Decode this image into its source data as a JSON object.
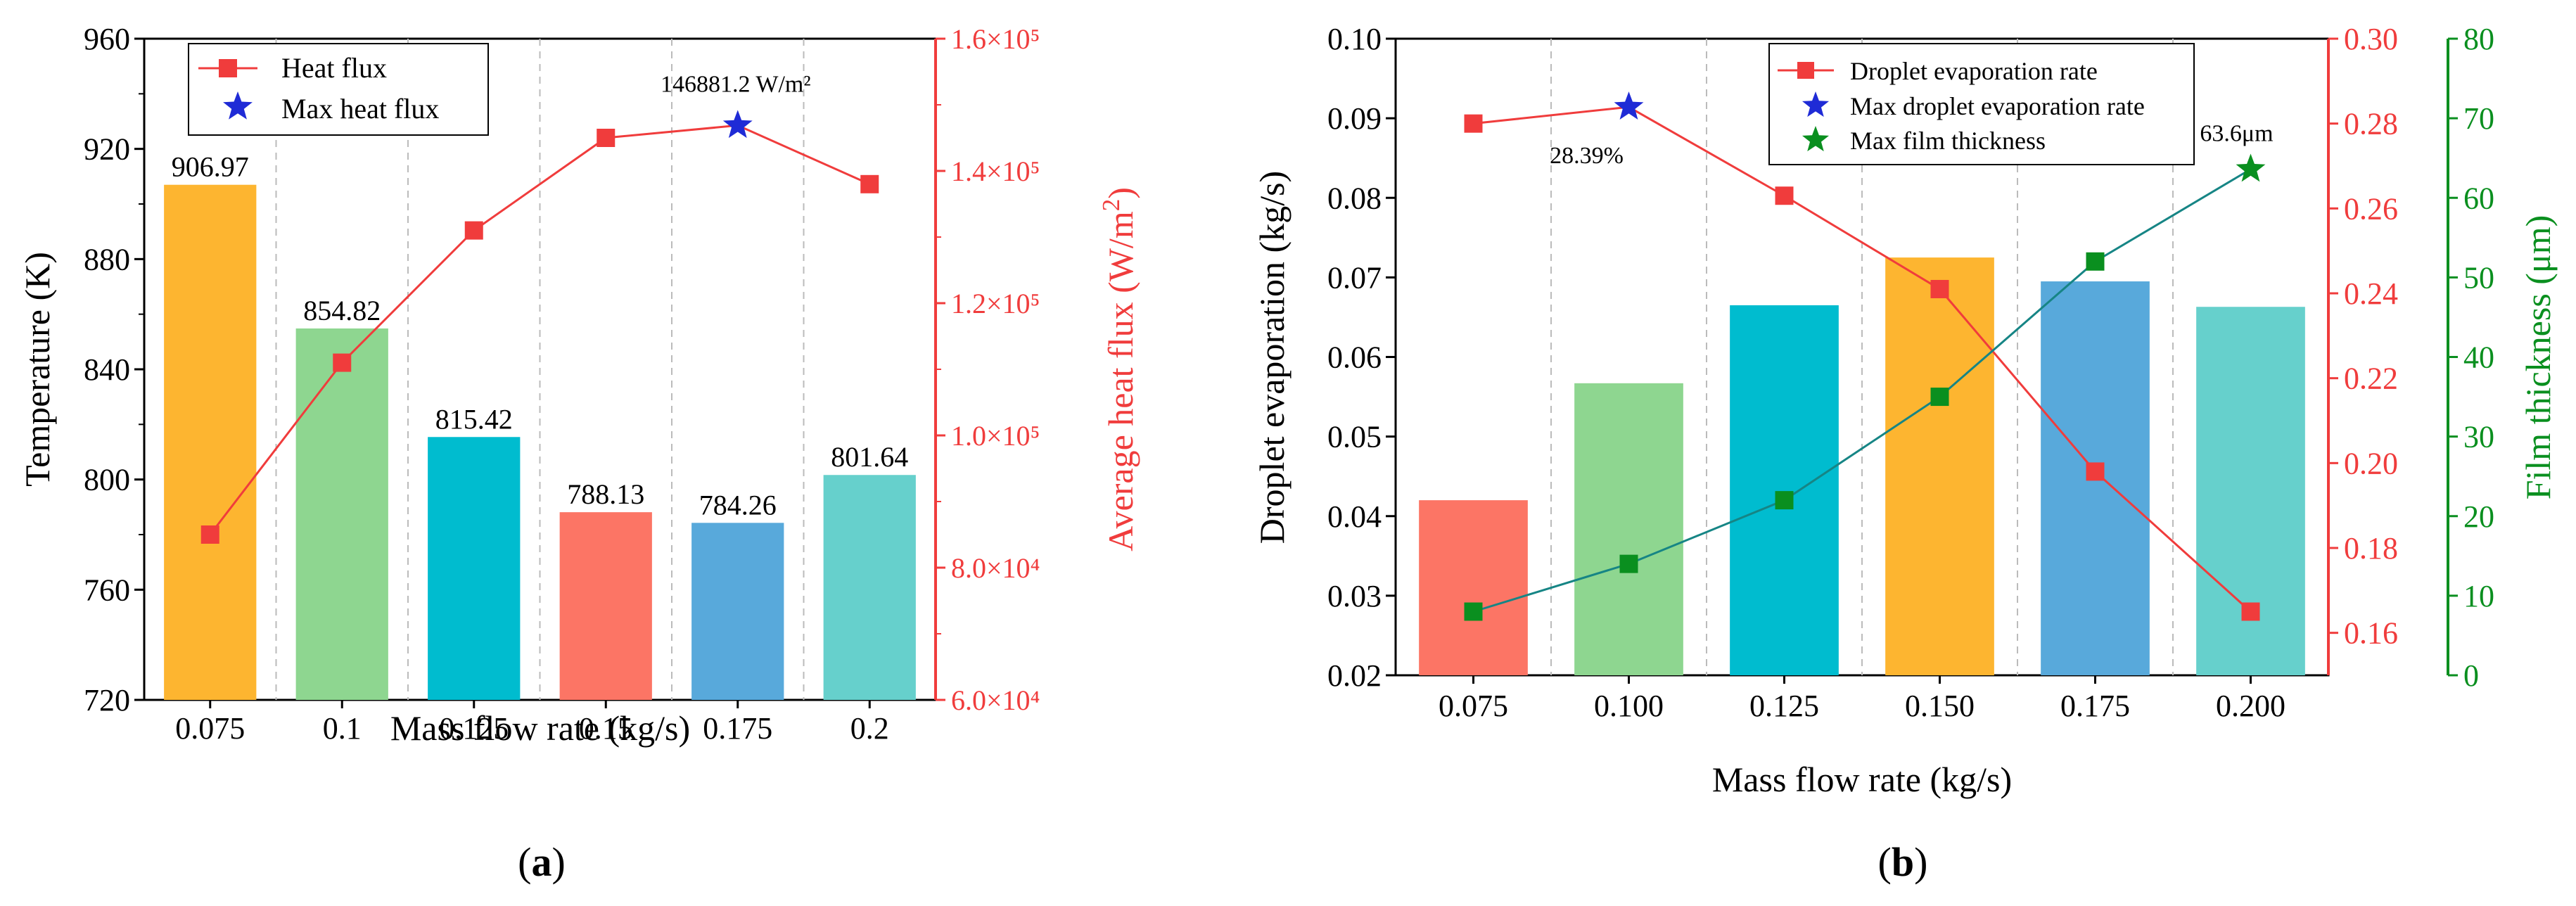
{
  "colors": {
    "red": "#f03c3c",
    "blue": "#1f2bd6",
    "green": "#0a8f1f",
    "teal": "#168585",
    "bars": [
      "#fdb530",
      "#8ed690",
      "#00bccf",
      "#fc7565",
      "#58a9db",
      "#66d0cc"
    ]
  },
  "chart_data": [
    {
      "panel": "(a)",
      "panel_letter": "a",
      "type": "bar+line",
      "categories": [
        "0.075",
        "0.1",
        "0.125",
        "0.15",
        "0.175",
        "0.2"
      ],
      "xlabel": "Mass flow rate (kg/s)",
      "ylabel_left": "Temperature (K)",
      "ylabel_right": "Average heat flux (W/m²)",
      "ylim_left": [
        720,
        960
      ],
      "yticks_left": [
        "720",
        "760",
        "800",
        "840",
        "880",
        "920",
        "960"
      ],
      "ylim_right": [
        60000,
        160000
      ],
      "yticks_right": [
        "6.0×10⁴",
        "8.0×10⁴",
        "1.0×10⁵",
        "1.2×10⁵",
        "1.4×10⁵",
        "1.6×10⁵"
      ],
      "bar_series": {
        "name": "Temperature",
        "values": [
          906.97,
          854.82,
          815.42,
          788.13,
          784.26,
          801.64
        ]
      },
      "bar_labels": [
        "906.97",
        "854.82",
        "815.42",
        "788.13",
        "784.26",
        "801.64"
      ],
      "line_series": {
        "name": "Heat flux",
        "values": [
          85000,
          111000,
          131000,
          145000,
          146881.2,
          138000
        ]
      },
      "max_point": {
        "name": "Max heat flux",
        "index": 4,
        "value": 146881.2,
        "label": "146881.2 W/m²"
      },
      "legend": [
        "Heat flux",
        "Max heat flux"
      ]
    },
    {
      "panel": "(b)",
      "panel_letter": "b",
      "type": "bar+line",
      "categories": [
        "0.075",
        "0.100",
        "0.125",
        "0.150",
        "0.175",
        "0.200"
      ],
      "xlabel": "Mass flow rate (kg/s)",
      "ylabel_left": "Droplet evaporation (kg/s)",
      "ylabel_right1": "",
      "ylabel_right2": "Film thickness (μm)",
      "ylim_left": [
        0.02,
        0.1
      ],
      "yticks_left": [
        "0.02",
        "0.03",
        "0.04",
        "0.05",
        "0.06",
        "0.07",
        "0.08",
        "0.09",
        "0.10"
      ],
      "ylim_right1": [
        0.15,
        0.3
      ],
      "yticks_right1": [
        "0.16",
        "0.18",
        "0.20",
        "0.22",
        "0.24",
        "0.26",
        "0.28",
        "0.30"
      ],
      "ylim_right2": [
        0,
        80
      ],
      "yticks_right2": [
        "0",
        "10",
        "20",
        "30",
        "40",
        "50",
        "60",
        "70",
        "80"
      ],
      "bar_series": {
        "name": "Droplet evaporation",
        "values": [
          0.042,
          0.0567,
          0.0665,
          0.0725,
          0.0695,
          0.0663
        ]
      },
      "line_series": [
        {
          "name": "Droplet evaporation rate",
          "axis": "right1",
          "values": [
            0.28,
            0.2839,
            0.263,
            0.241,
            0.198,
            0.165
          ]
        },
        {
          "name": "Film thickness",
          "axis": "right2",
          "values": [
            8,
            14,
            22,
            35,
            52,
            63.6
          ]
        }
      ],
      "max_points": [
        {
          "name": "Max droplet evaporation rate",
          "index": 1,
          "label": "28.39%"
        },
        {
          "name": "Max film thickness",
          "index": 5,
          "label": "63.6μm"
        }
      ],
      "legend": [
        "Droplet evaporation rate",
        "Max droplet evaporation rate",
        "Max film thickness"
      ]
    }
  ]
}
